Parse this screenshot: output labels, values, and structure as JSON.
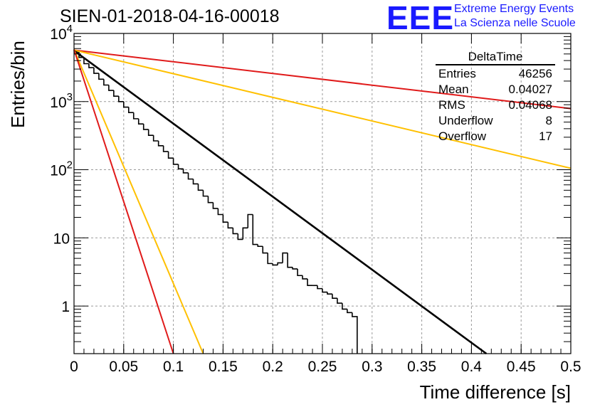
{
  "title": "SIEN-01-2018-04-16-00018",
  "logo": {
    "mark": "EEE",
    "line1": "Extreme Energy Events",
    "line2": "La Scienza nelle Scuole",
    "color": "#1a1aff"
  },
  "stats": {
    "name": "DeltaTime",
    "rows": [
      {
        "label": "Entries",
        "value": "46256"
      },
      {
        "label": "Mean",
        "value": "0.04027"
      },
      {
        "label": "RMS",
        "value": "0.04068"
      },
      {
        "label": "Underflow",
        "value": "8"
      },
      {
        "label": "Overflow",
        "value": "17"
      }
    ]
  },
  "chart_data": {
    "type": "histogram",
    "xlabel": "Time difference [s]",
    "ylabel": "Entries/bin",
    "xlim": [
      0,
      0.5
    ],
    "ylim": [
      0.2,
      10000
    ],
    "yscale": "log",
    "grid": true,
    "xticks": [
      0,
      0.05,
      0.1,
      0.15,
      0.2,
      0.25,
      0.3,
      0.35,
      0.4,
      0.45,
      0.5
    ],
    "xtick_labels": [
      "0",
      "0.05",
      "0.1",
      "0.15",
      "0.2",
      "0.25",
      "0.3",
      "0.35",
      "0.4",
      "0.45",
      "0.5"
    ],
    "yticks": [
      1,
      10,
      100,
      1000,
      10000
    ],
    "ytick_labels": [
      {
        "base": "1",
        "exp": ""
      },
      {
        "base": "10",
        "exp": ""
      },
      {
        "base": "10",
        "exp": "2"
      },
      {
        "base": "10",
        "exp": "3"
      },
      {
        "base": "10",
        "exp": "4"
      }
    ],
    "bin_width": 0.005,
    "histogram": {
      "color": "#000000",
      "values": [
        5400,
        4450,
        3600,
        3150,
        2600,
        2130,
        1750,
        1460,
        1200,
        1000,
        830,
        690,
        560,
        470,
        390,
        320,
        265,
        225,
        185,
        148,
        120,
        103,
        90,
        73,
        62,
        50,
        41,
        33,
        27,
        22,
        17,
        14,
        11.5,
        9.5,
        14,
        22,
        8,
        7.5,
        6,
        4.2,
        4,
        4.3,
        6,
        3.7,
        3.5,
        2.8,
        2.5,
        2,
        2,
        1.8,
        1.6,
        1.5,
        1.3,
        1.1,
        0.9,
        0.8,
        0.7
      ]
    },
    "fits": [
      {
        "color": "#e01a1a",
        "y0": 5700,
        "x_end": 0.5,
        "y_end": 790
      },
      {
        "color": "#ffc000",
        "y0": 5700,
        "x_end": 0.5,
        "y_end": 105
      },
      {
        "color": "#000000",
        "y0": 5600,
        "x_end": 0.415,
        "y_end": 0.2
      },
      {
        "color": "#ffc000",
        "y0": 5800,
        "x_end": 0.13,
        "y_end": 0.2
      },
      {
        "color": "#e01a1a",
        "y0": 5800,
        "x_end": 0.1,
        "y_end": 0.2
      }
    ]
  }
}
